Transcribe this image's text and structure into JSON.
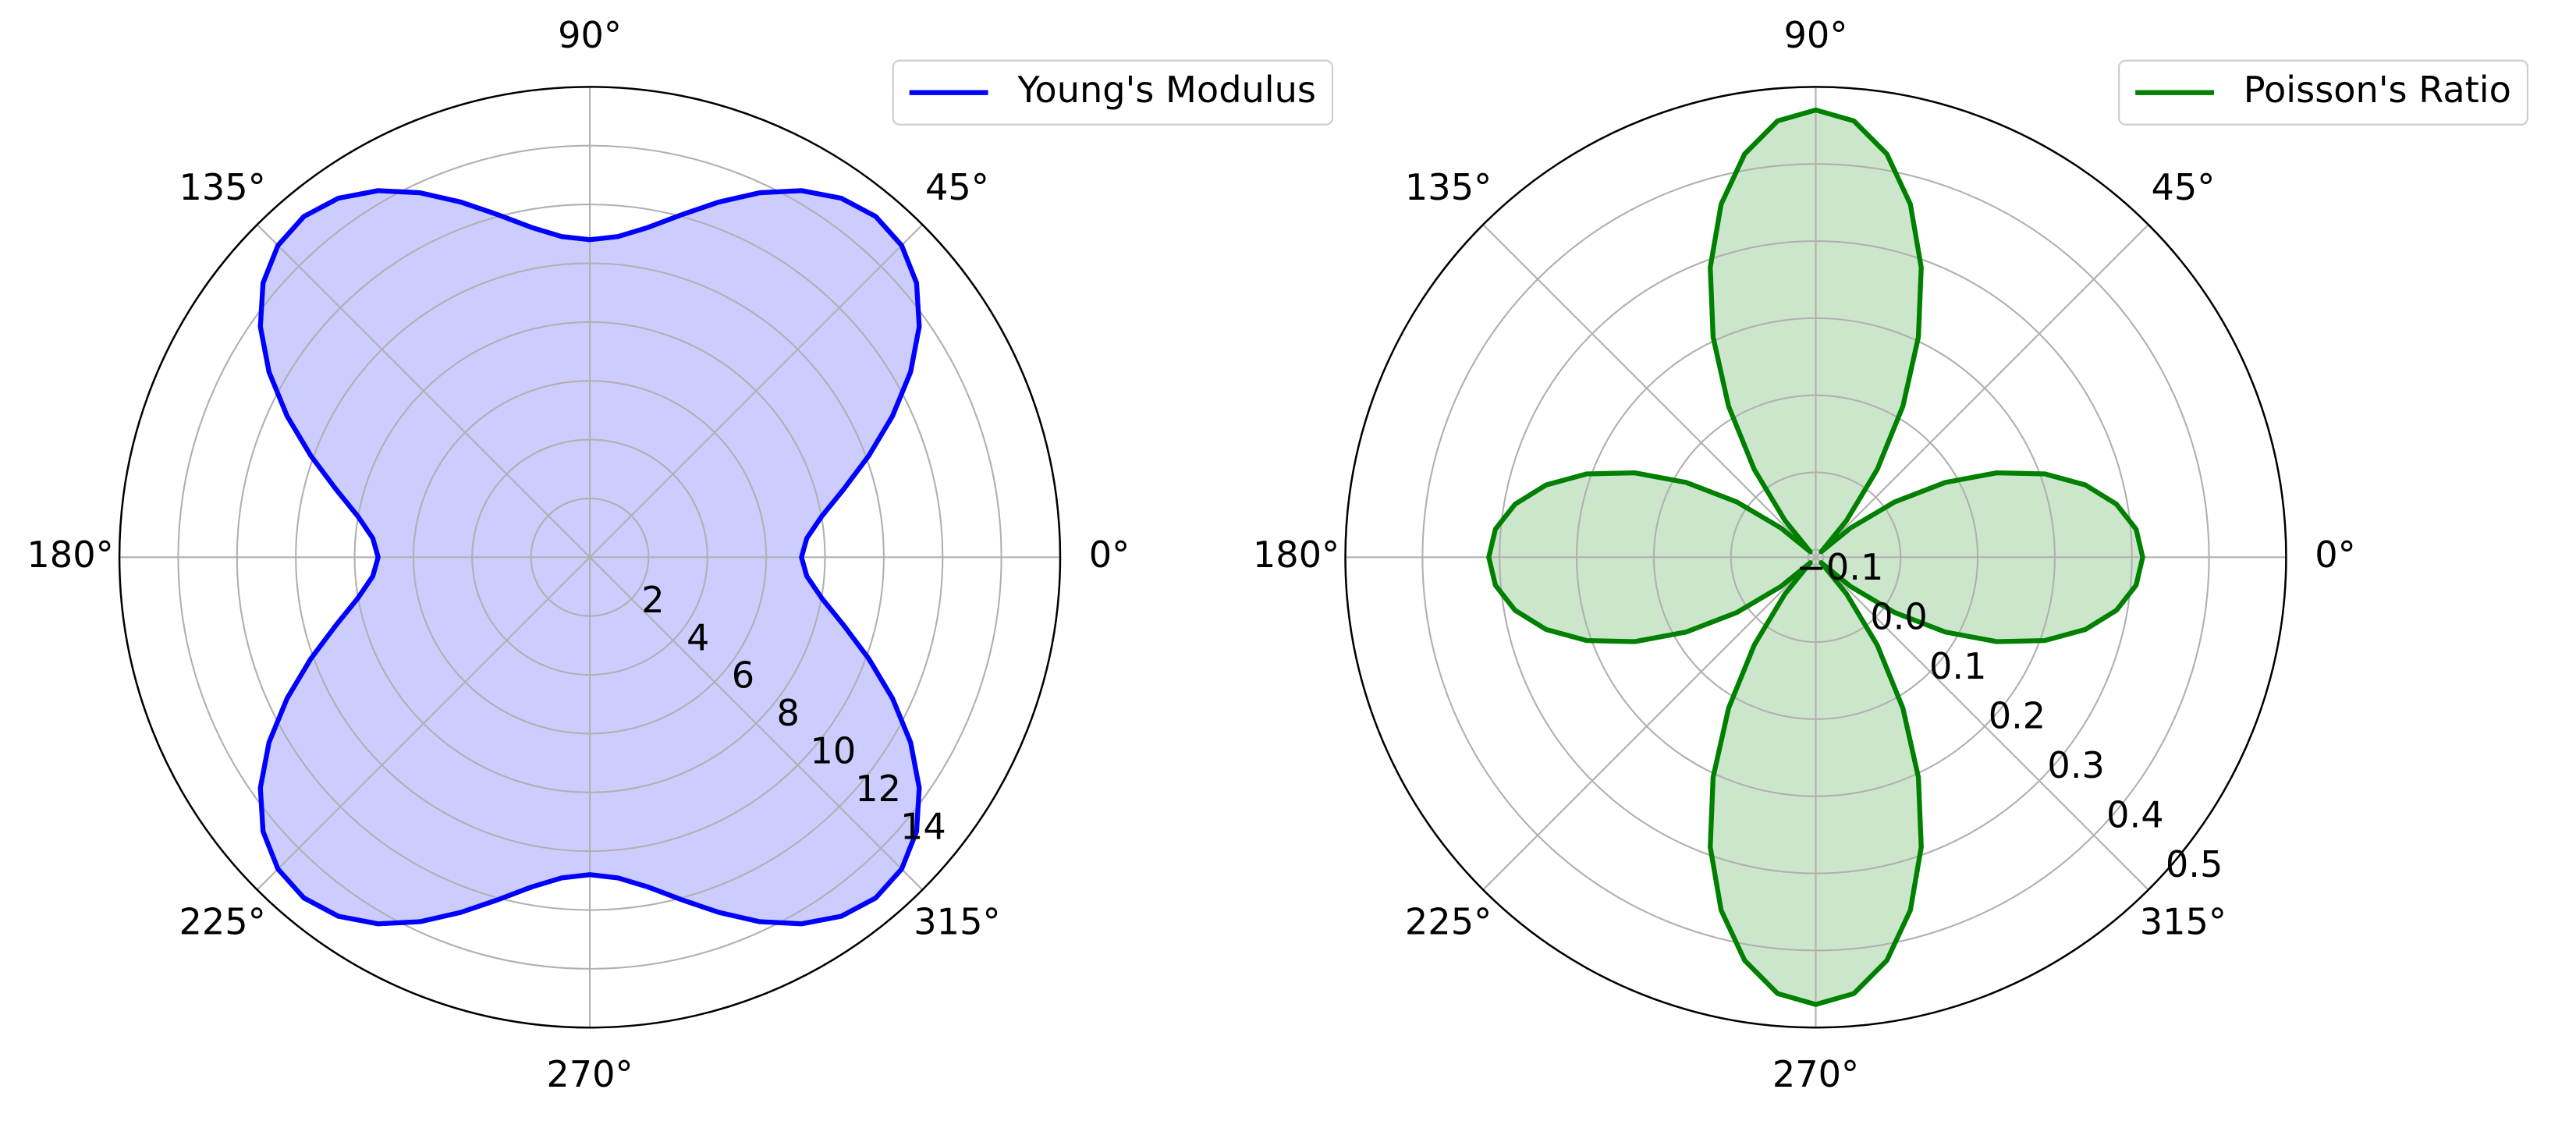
{
  "chart_data": [
    {
      "type": "polar",
      "x": [
        0,
        5,
        10,
        15,
        20,
        25,
        30,
        35,
        40,
        45,
        50,
        55,
        60,
        65,
        70,
        75,
        80,
        85,
        90,
        95,
        100,
        105,
        110,
        115,
        120,
        125,
        130,
        135,
        140,
        145,
        150,
        155,
        160,
        165,
        170,
        175,
        180,
        185,
        190,
        195,
        200,
        205,
        210,
        215,
        220,
        225,
        230,
        235,
        240,
        245,
        250,
        255,
        260,
        265,
        270,
        275,
        280,
        285,
        290,
        295,
        300,
        305,
        310,
        315,
        320,
        325,
        330,
        335,
        340,
        345,
        350,
        355
      ],
      "series": [
        {
          "name": "Young's Modulus",
          "color": "#0000ff",
          "values": [
            7.2,
            7.41,
            8.01,
            8.94,
            10.1,
            11.36,
            12.6,
            13.68,
            14.51,
            15.0,
            15.13,
            14.91,
            14.4,
            13.68,
            12.86,
            12.06,
            11.39,
            10.95,
            10.8,
            10.95,
            11.39,
            12.06,
            12.86,
            13.68,
            14.4,
            14.91,
            15.13,
            15.0,
            14.51,
            13.68,
            12.6,
            11.36,
            10.1,
            8.94,
            8.01,
            7.41,
            7.2,
            7.41,
            8.01,
            8.94,
            10.1,
            11.36,
            12.6,
            13.68,
            14.51,
            15.0,
            15.13,
            14.91,
            14.4,
            13.68,
            12.86,
            12.06,
            11.39,
            10.95,
            10.8,
            10.95,
            11.39,
            12.06,
            12.86,
            13.68,
            14.4,
            14.91,
            15.13,
            15.0,
            14.51,
            13.68,
            12.6,
            11.36,
            10.1,
            8.94,
            8.01,
            7.41
          ]
        }
      ],
      "fill_alpha": 0.2,
      "ylim": [
        0,
        16
      ],
      "yticks": [
        2,
        4,
        6,
        8,
        10,
        12,
        14
      ],
      "xticks": [
        {
          "value": 0,
          "label": "0°"
        },
        {
          "value": 45,
          "label": "45°"
        },
        {
          "value": 90,
          "label": "90°"
        },
        {
          "value": 135,
          "label": "135°"
        },
        {
          "value": 180,
          "label": "180°"
        },
        {
          "value": 225,
          "label": "225°"
        },
        {
          "value": 270,
          "label": "270°"
        },
        {
          "value": 315,
          "label": "315°"
        }
      ],
      "grid": true,
      "legend": "upper right"
    },
    {
      "type": "polar",
      "x": [
        0,
        5,
        10,
        15,
        20,
        25,
        30,
        35,
        40,
        45,
        50,
        55,
        60,
        65,
        70,
        75,
        80,
        85,
        90,
        95,
        100,
        105,
        110,
        115,
        120,
        125,
        130,
        135,
        140,
        145,
        150,
        155,
        160,
        165,
        170,
        175,
        180,
        185,
        190,
        195,
        200,
        205,
        210,
        215,
        220,
        225,
        230,
        235,
        240,
        245,
        250,
        255,
        260,
        265,
        270,
        275,
        280,
        285,
        290,
        295,
        300,
        305,
        310,
        315,
        320,
        325,
        330,
        335,
        340,
        345,
        350,
        355
      ],
      "series": [
        {
          "name": "Poisson's Ratio",
          "color": "#008000",
          "values": [
            0.314,
            0.307,
            0.286,
            0.252,
            0.206,
            0.149,
            0.084,
            0.015,
            -0.051,
            -0.1,
            -0.048,
            0.029,
            0.116,
            0.205,
            0.29,
            0.364,
            0.421,
            0.458,
            0.47,
            0.458,
            0.421,
            0.364,
            0.29,
            0.205,
            0.116,
            0.029,
            -0.048,
            -0.1,
            -0.051,
            0.015,
            0.084,
            0.149,
            0.206,
            0.252,
            0.286,
            0.307,
            0.314,
            0.307,
            0.286,
            0.252,
            0.206,
            0.149,
            0.084,
            0.015,
            -0.051,
            -0.1,
            -0.048,
            0.029,
            0.116,
            0.205,
            0.29,
            0.364,
            0.421,
            0.458,
            0.47,
            0.458,
            0.421,
            0.364,
            0.29,
            0.205,
            0.116,
            0.029,
            -0.048,
            -0.1,
            -0.051,
            0.015,
            0.084,
            0.149,
            0.206,
            0.252,
            0.286,
            0.307
          ]
        }
      ],
      "fill_alpha": 0.2,
      "ylim": [
        -0.11,
        0.5
      ],
      "yticks": [
        {
          "value": -0.1,
          "label": "−0.1"
        },
        {
          "value": 0,
          "label": "0.0"
        },
        0.1,
        0.2,
        0.3,
        0.4,
        0.5
      ],
      "xticks": [
        {
          "value": 0,
          "label": "0°"
        },
        {
          "value": 45,
          "label": "45°"
        },
        {
          "value": 90,
          "label": "90°"
        },
        {
          "value": 135,
          "label": "135°"
        },
        {
          "value": 180,
          "label": "180°"
        },
        {
          "value": 225,
          "label": "225°"
        },
        {
          "value": 270,
          "label": "270°"
        },
        {
          "value": 315,
          "label": "315°"
        }
      ],
      "grid": true,
      "legend": "upper right"
    }
  ]
}
